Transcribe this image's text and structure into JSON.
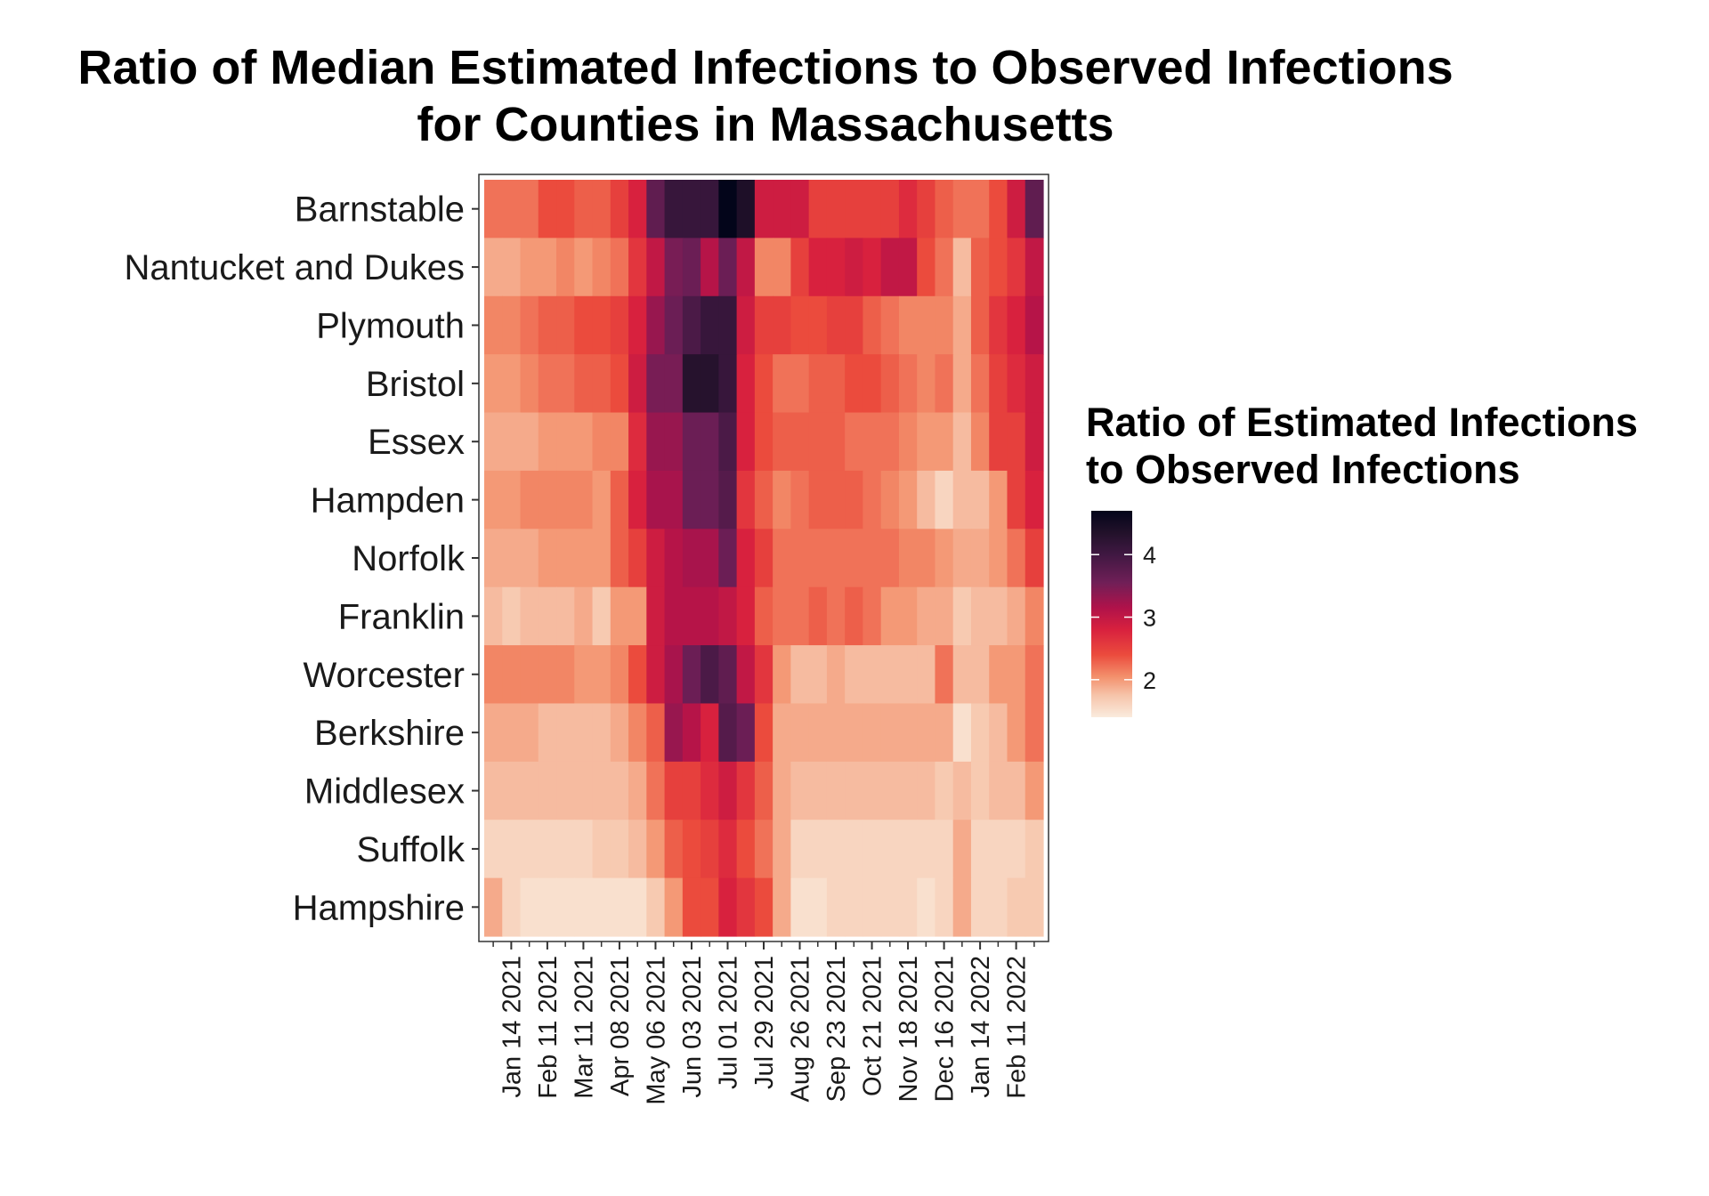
{
  "chart_data": {
    "type": "heatmap",
    "title_lines": [
      "Ratio of Median Estimated Infections to Observed Infections",
      "for Counties in Massachusetts"
    ],
    "xlabel": "",
    "ylabel": "",
    "legend": {
      "title_lines": [
        "Ratio of Estimated Infections",
        "to Observed Infections"
      ],
      "ticks": [
        "2",
        "3",
        "4"
      ],
      "tick_values": [
        2,
        3,
        4
      ],
      "range": [
        1.4,
        4.7
      ],
      "placement": "right"
    },
    "color_stops": [
      {
        "v": 1.4,
        "c": "#FAEBDD"
      },
      {
        "v": 1.75,
        "c": "#F6C4AA"
      },
      {
        "v": 2.05,
        "c": "#F3906C"
      },
      {
        "v": 2.4,
        "c": "#EB4B3D"
      },
      {
        "v": 2.8,
        "c": "#D8213E"
      },
      {
        "v": 3.15,
        "c": "#B0124A"
      },
      {
        "v": 3.55,
        "c": "#701F57"
      },
      {
        "v": 4.0,
        "c": "#401842"
      },
      {
        "v": 4.35,
        "c": "#22112A"
      },
      {
        "v": 4.7,
        "c": "#03051A"
      }
    ],
    "x_tick_labels": [
      "Jan 14 2021",
      "Feb 11 2021",
      "Mar 11 2021",
      "Apr 08 2021",
      "May 06 2021",
      "Jun 03 2021",
      "Jul 01 2021",
      "Jul 29 2021",
      "Aug 26 2021",
      "Sep 23 2021",
      "Oct 21 2021",
      "Nov 18 2021",
      "Dec 16 2021",
      "Jan 14 2022",
      "Feb 11 2022"
    ],
    "counties": [
      "Barnstable",
      "Nantucket and Dukes",
      "Plymouth",
      "Bristol",
      "Essex",
      "Hampden",
      "Norfolk",
      "Franklin",
      "Worcester",
      "Berkshire",
      "Middlesex",
      "Suffolk",
      "Hampshire"
    ],
    "periods": 31,
    "values": [
      [
        2.2,
        2.2,
        2.2,
        2.4,
        2.4,
        2.3,
        2.3,
        2.5,
        2.8,
        3.7,
        4.1,
        4.1,
        4.1,
        4.7,
        4.4,
        2.9,
        2.9,
        2.9,
        2.5,
        2.5,
        2.5,
        2.5,
        2.5,
        2.7,
        2.5,
        2.3,
        2.2,
        2.2,
        2.4,
        2.9,
        3.7
      ],
      [
        1.9,
        1.9,
        2.0,
        2.0,
        2.1,
        2.0,
        2.1,
        2.2,
        2.6,
        3.0,
        3.5,
        3.6,
        3.1,
        3.6,
        3.0,
        2.1,
        2.1,
        2.5,
        2.8,
        2.8,
        2.9,
        2.8,
        3.0,
        3.0,
        2.4,
        2.2,
        1.8,
        2.3,
        2.4,
        2.6,
        3.0
      ],
      [
        2.1,
        2.1,
        2.2,
        2.3,
        2.3,
        2.4,
        2.4,
        2.5,
        2.8,
        3.3,
        3.6,
        3.9,
        4.1,
        4.1,
        2.9,
        2.5,
        2.5,
        2.4,
        2.4,
        2.5,
        2.5,
        2.3,
        2.2,
        2.1,
        2.1,
        2.1,
        1.9,
        2.3,
        2.6,
        2.8,
        3.1
      ],
      [
        2.0,
        2.0,
        2.1,
        2.2,
        2.2,
        2.3,
        2.3,
        2.4,
        2.9,
        3.5,
        3.5,
        4.3,
        4.3,
        4.1,
        2.8,
        2.4,
        2.2,
        2.2,
        2.3,
        2.3,
        2.4,
        2.4,
        2.3,
        2.2,
        2.1,
        2.2,
        1.9,
        2.2,
        2.5,
        2.7,
        2.9
      ],
      [
        1.9,
        1.9,
        1.9,
        2.0,
        2.0,
        2.0,
        2.1,
        2.1,
        2.7,
        3.3,
        3.3,
        3.6,
        3.6,
        3.9,
        2.8,
        2.4,
        2.3,
        2.3,
        2.3,
        2.3,
        2.2,
        2.2,
        2.2,
        2.1,
        2.0,
        2.0,
        1.8,
        2.1,
        2.5,
        2.5,
        2.9
      ],
      [
        2.0,
        2.0,
        2.1,
        2.1,
        2.1,
        2.1,
        2.0,
        2.3,
        2.8,
        3.2,
        3.2,
        3.6,
        3.6,
        3.8,
        2.6,
        2.3,
        2.1,
        2.2,
        2.3,
        2.3,
        2.3,
        2.2,
        2.1,
        2.0,
        1.8,
        1.6,
        1.8,
        1.8,
        2.0,
        2.5,
        2.8
      ],
      [
        1.9,
        1.9,
        1.9,
        2.0,
        2.0,
        2.0,
        2.0,
        2.3,
        2.5,
        2.9,
        3.1,
        3.2,
        3.2,
        3.6,
        2.8,
        2.5,
        2.2,
        2.2,
        2.2,
        2.2,
        2.2,
        2.2,
        2.2,
        2.1,
        2.1,
        2.0,
        1.9,
        1.9,
        2.0,
        2.2,
        2.5
      ],
      [
        1.8,
        1.7,
        1.8,
        1.8,
        1.8,
        1.9,
        1.7,
        2.0,
        2.0,
        2.9,
        3.1,
        3.1,
        3.1,
        3.0,
        2.8,
        2.3,
        2.2,
        2.2,
        2.3,
        2.2,
        2.3,
        2.2,
        2.0,
        2.0,
        1.9,
        1.9,
        1.7,
        1.8,
        1.8,
        1.9,
        2.1
      ],
      [
        2.1,
        2.1,
        2.1,
        2.1,
        2.1,
        2.0,
        2.0,
        2.1,
        2.4,
        2.9,
        3.2,
        3.6,
        3.9,
        3.7,
        3.0,
        2.6,
        2.0,
        1.8,
        1.8,
        1.9,
        1.8,
        1.8,
        1.8,
        1.8,
        1.8,
        2.2,
        1.8,
        1.8,
        2.0,
        2.0,
        2.2
      ],
      [
        1.9,
        1.9,
        1.9,
        1.8,
        1.8,
        1.8,
        1.8,
        1.9,
        2.1,
        2.3,
        3.3,
        3.1,
        2.8,
        3.8,
        3.6,
        2.4,
        1.9,
        1.9,
        1.9,
        1.9,
        1.9,
        1.9,
        1.9,
        1.9,
        1.9,
        1.9,
        1.5,
        1.7,
        1.8,
        2.0,
        2.2
      ],
      [
        1.8,
        1.8,
        1.8,
        1.8,
        1.8,
        1.8,
        1.8,
        1.8,
        1.9,
        2.2,
        2.5,
        2.5,
        2.7,
        2.9,
        2.6,
        2.3,
        1.9,
        1.8,
        1.8,
        1.8,
        1.8,
        1.8,
        1.8,
        1.8,
        1.8,
        1.7,
        1.8,
        1.7,
        1.8,
        1.8,
        2.0
      ],
      [
        1.6,
        1.6,
        1.6,
        1.6,
        1.6,
        1.6,
        1.7,
        1.7,
        1.8,
        2.0,
        2.3,
        2.4,
        2.5,
        2.7,
        2.4,
        2.2,
        1.9,
        1.6,
        1.6,
        1.6,
        1.6,
        1.6,
        1.6,
        1.6,
        1.6,
        1.6,
        1.9,
        1.6,
        1.6,
        1.6,
        1.7
      ],
      [
        1.9,
        1.6,
        1.5,
        1.5,
        1.5,
        1.5,
        1.5,
        1.5,
        1.5,
        1.7,
        2.0,
        2.4,
        2.4,
        2.8,
        2.6,
        2.4,
        1.9,
        1.5,
        1.5,
        1.6,
        1.6,
        1.6,
        1.6,
        1.6,
        1.5,
        1.6,
        1.9,
        1.6,
        1.6,
        1.7,
        1.7
      ]
    ]
  }
}
